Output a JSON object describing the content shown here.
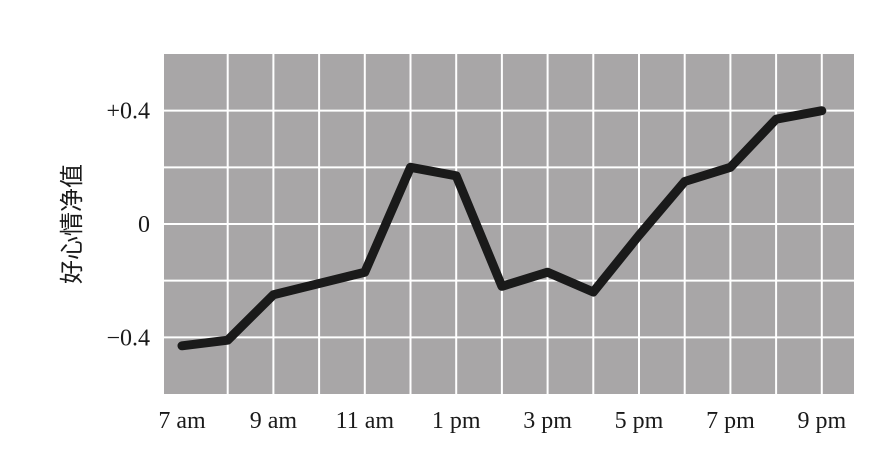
{
  "chart_data": {
    "type": "line",
    "title": "",
    "xlabel": "",
    "ylabel": "好心情净值",
    "x_tick_labels": [
      "7 am",
      "9 am",
      "11 am",
      "1 pm",
      "3 pm",
      "5 pm",
      "7 pm",
      "9 pm"
    ],
    "y_tick_labels": [
      "+0.4",
      "0",
      "−0.4"
    ],
    "y_tick_values": [
      0.4,
      0,
      -0.4
    ],
    "ylim": [
      -0.6,
      0.6
    ],
    "xlim": [
      6.5,
      22
    ],
    "grid": true,
    "x": [
      7,
      8,
      9,
      10,
      11,
      12,
      13,
      14,
      15,
      16,
      17,
      18,
      19,
      20,
      21
    ],
    "series": [
      {
        "values": [
          -0.43,
          -0.41,
          -0.25,
          -0.21,
          -0.17,
          0.2,
          0.17,
          -0.22,
          -0.17,
          -0.24,
          -0.04,
          0.15,
          0.2,
          0.37,
          0.4
        ]
      }
    ],
    "colors": {
      "plot_background": "#a8a6a7",
      "grid": "#ffffff",
      "line": "#1a1a1a"
    }
  }
}
